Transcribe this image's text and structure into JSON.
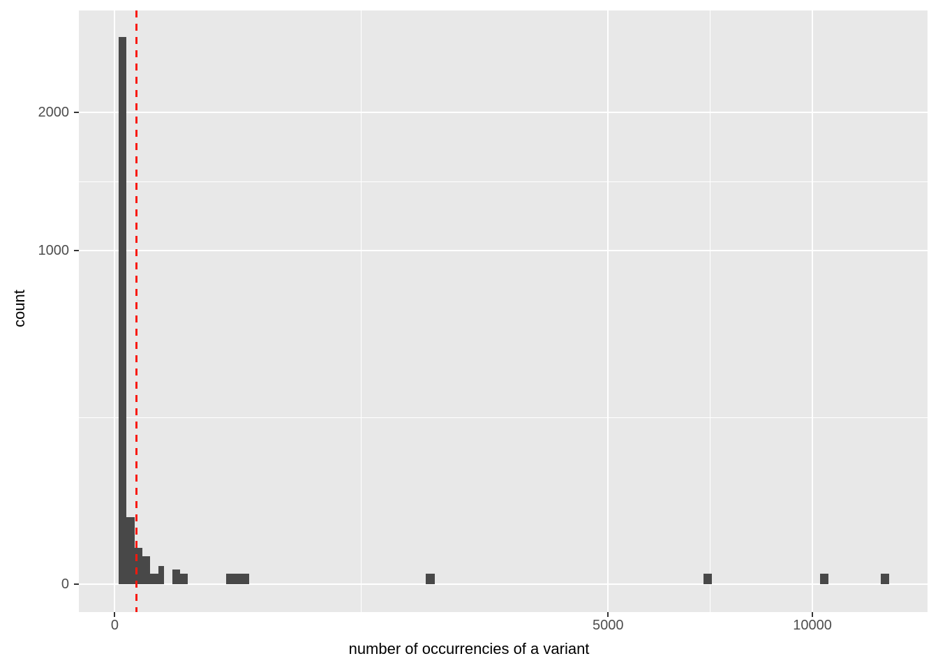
{
  "figure": {
    "background": "#FFFFFF",
    "panel_background": "#E8E8E8",
    "bar_color": "#484848",
    "gridline_color": "#FFFFFF",
    "tick_mark_color": "#333333",
    "axis_text_color": "#4D4D4D",
    "axis_title_color": "#000000",
    "vline_color": "#F8190E"
  },
  "chart_data": {
    "type": "bar",
    "subtype": "histogram",
    "title": "",
    "xlabel": "number of occurrencies of a variant",
    "ylabel": "count",
    "x_transform": "sqrt",
    "y_transform": "sqrt",
    "grid": true,
    "legend": "none",
    "bins": [
      {
        "x0": 0.3,
        "x1": 2.89,
        "count": 2690
      },
      {
        "x0": 2.89,
        "x1": 8.12,
        "count": 40
      },
      {
        "x0": 8.12,
        "x1": 15.84,
        "count": 12
      },
      {
        "x0": 15.84,
        "x1": 25.81,
        "count": 7
      },
      {
        "x0": 25.81,
        "x1": 38.69,
        "count": 1
      },
      {
        "x0": 38.69,
        "x1": 50.41,
        "count": 3
      },
      {
        "x0": 68.56,
        "x1": 87.98,
        "count": 2
      },
      {
        "x0": 87.98,
        "x1": 108.58,
        "count": 1
      },
      {
        "x0": 255.36,
        "x1": 371.72,
        "count": 1
      },
      {
        "x0": 1987.4,
        "x1": 2102.2,
        "count": 1
      },
      {
        "x0": 7120.0,
        "x1": 7318.8,
        "count": 1
      },
      {
        "x0": 10221.2,
        "x1": 10455.1,
        "count": 1
      },
      {
        "x0": 12051.6,
        "x1": 12310.0,
        "count": 1
      }
    ],
    "vline": {
      "x": 9.6,
      "style": "dashed",
      "color": "#F8190E"
    },
    "x_ticks": [
      {
        "value": 0,
        "label": "0"
      },
      {
        "value": 5000,
        "label": "5000"
      },
      {
        "value": 10000,
        "label": "10000"
      }
    ],
    "y_ticks": [
      {
        "value": 0,
        "label": "0"
      },
      {
        "value": 1000,
        "label": "1000"
      },
      {
        "value": 2000,
        "label": "2000"
      }
    ],
    "x_minor_gridlines": [
      1250,
      7286
    ],
    "y_minor_gridlines": [
      250,
      1457
    ],
    "x_range_sqrt": [
      -5.15,
      116.5
    ],
    "y_range_sqrt": [
      -2.65,
      54.4
    ]
  }
}
